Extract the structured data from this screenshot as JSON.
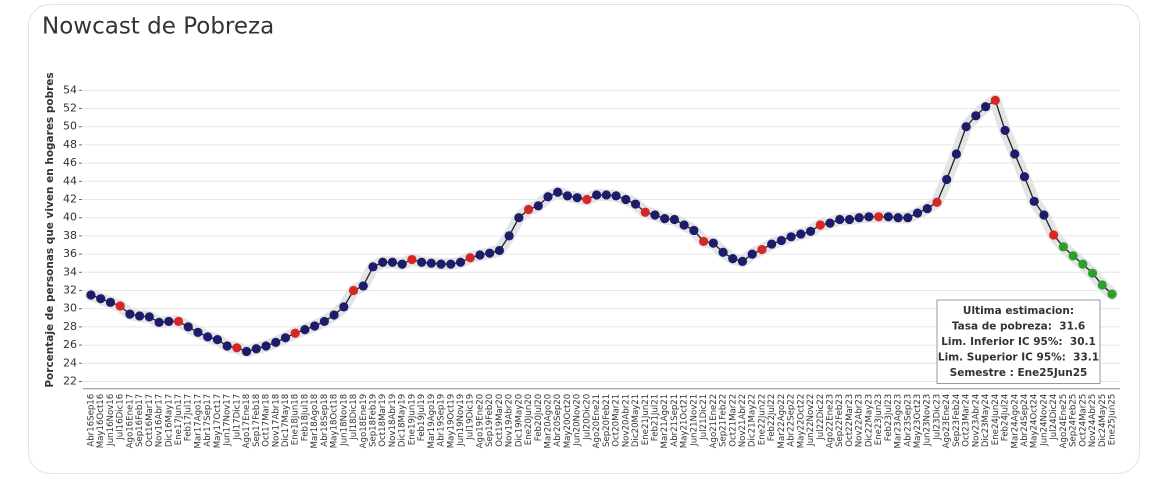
{
  "chart_data": {
    "type": "line",
    "title": "Nowcast de Pobreza",
    "y_label": "Porcentaje de personas que viven en hogares pobres",
    "categories": [
      "Abr16Sep16",
      "May16Oct16",
      "Jun16Nov16",
      "Jul16Dic16",
      "Ago16Ene17",
      "Sep16Feb17",
      "Oct16Mar17",
      "Nov16Abr17",
      "Dic16May17",
      "Ene17Jun17",
      "Feb17Jul17",
      "Mar17Ago17",
      "Abr17Sep17",
      "May17Oct17",
      "Jun17Nov17",
      "Jul17Dic17",
      "Ago17Ene18",
      "Sep17Feb18",
      "Oct17Mar18",
      "Nov17Abr18",
      "Dic17May18",
      "Ene18Jun18",
      "Feb18Jul18",
      "Mar18Ago18",
      "Abr18Sep18",
      "May18Oct18",
      "Jun18Nov18",
      "Jul18Dic18",
      "Ago18Ene19",
      "Sep18Feb19",
      "Oct18Mar19",
      "Nov18Abr19",
      "Dic18May19",
      "Ene19Jun19",
      "Feb19Jul19",
      "Mar19Ago19",
      "Abr19Sep19",
      "May19Oct19",
      "Jun19Nov19",
      "Jul19Dic19",
      "Ago19Ene20",
      "Sep19Feb20",
      "Oct19Mar20",
      "Nov19Abr20",
      "Dic19May20",
      "Ene20Jun20",
      "Feb20Jul20",
      "Mar20Ago20",
      "Abr20Sep20",
      "May20Oct20",
      "Jun20Nov20",
      "Jul20Dic20",
      "Ago20Ene21",
      "Sep20Feb21",
      "Oct20Mar21",
      "Nov20Abr21",
      "Dic20May21",
      "Ene21Jun21",
      "Feb21Jul21",
      "Mar21Ago21",
      "Abr21Sep21",
      "May21Oct21",
      "Jun21Nov21",
      "Jul21Dic21",
      "Ago21Ene22",
      "Sep21Feb22",
      "Oct21Mar22",
      "Nov21Abr22",
      "Dic21May22",
      "Ene22Jun22",
      "Feb22Jul22",
      "Mar22Ago22",
      "Abr22Sep22",
      "May22Oct22",
      "Jun22Nov22",
      "Jul22Dic22",
      "Ago22Ene23",
      "Sep22Feb23",
      "Oct22Mar23",
      "Nov22Abr23",
      "Dic22May23",
      "Ene23Jun23",
      "Feb23Jul23",
      "Mar23Ago23",
      "Abr23Sep23",
      "May23Oct23",
      "Jun23Nov23",
      "Jul23Dic23",
      "Ago23Ene24",
      "Sep23Feb24",
      "Oct23Mar24",
      "Nov23Abr24",
      "Dic23May24",
      "Ene24Jun24",
      "Feb24Jul24",
      "Mar24Ago24",
      "Abr24Sep24",
      "May24Oct24",
      "Jun24Nov24",
      "Jul24Dic24",
      "Ago24Ene25",
      "Sep24Feb25",
      "Oct24Mar25",
      "Nov24Abr25",
      "Dic24May25",
      "Ene25Jun25"
    ],
    "values": [
      31.5,
      31.1,
      30.7,
      30.3,
      29.4,
      29.2,
      29.1,
      28.5,
      28.6,
      28.6,
      28.0,
      27.4,
      26.9,
      26.6,
      25.9,
      25.7,
      25.3,
      25.6,
      25.9,
      26.3,
      26.8,
      27.3,
      27.7,
      28.1,
      28.6,
      29.3,
      30.2,
      32.0,
      32.5,
      34.6,
      35.1,
      35.1,
      34.9,
      35.4,
      35.1,
      35.0,
      34.9,
      34.9,
      35.1,
      35.6,
      35.9,
      36.1,
      36.4,
      38.0,
      40.0,
      40.9,
      41.3,
      42.3,
      42.8,
      42.4,
      42.2,
      42.0,
      42.5,
      42.5,
      42.4,
      42.0,
      41.5,
      40.6,
      40.3,
      39.9,
      39.8,
      39.2,
      38.6,
      37.4,
      37.2,
      36.2,
      35.5,
      35.2,
      36.0,
      36.5,
      37.1,
      37.5,
      37.9,
      38.2,
      38.5,
      39.2,
      39.4,
      39.8,
      39.8,
      40.0,
      40.1,
      40.1,
      40.1,
      40.0,
      40.0,
      40.5,
      41.0,
      41.7,
      44.2,
      47.0,
      50.0,
      51.2,
      52.2,
      52.9,
      49.6,
      47.0,
      44.5,
      41.8,
      40.3,
      38.1,
      36.8,
      35.8,
      34.9,
      33.9,
      32.6,
      31.6
    ],
    "line_color": "#222222",
    "point_colors": [
      "#1c1c6b",
      "#1c1c6b",
      "#1c1c6b",
      "#d62728",
      "#1c1c6b",
      "#1c1c6b",
      "#1c1c6b",
      "#1c1c6b",
      "#1c1c6b",
      "#d62728",
      "#1c1c6b",
      "#1c1c6b",
      "#1c1c6b",
      "#1c1c6b",
      "#1c1c6b",
      "#d62728",
      "#1c1c6b",
      "#1c1c6b",
      "#1c1c6b",
      "#1c1c6b",
      "#1c1c6b",
      "#d62728",
      "#1c1c6b",
      "#1c1c6b",
      "#1c1c6b",
      "#1c1c6b",
      "#1c1c6b",
      "#d62728",
      "#1c1c6b",
      "#1c1c6b",
      "#1c1c6b",
      "#1c1c6b",
      "#1c1c6b",
      "#d62728",
      "#1c1c6b",
      "#1c1c6b",
      "#1c1c6b",
      "#1c1c6b",
      "#1c1c6b",
      "#d62728",
      "#1c1c6b",
      "#1c1c6b",
      "#1c1c6b",
      "#1c1c6b",
      "#1c1c6b",
      "#d62728",
      "#1c1c6b",
      "#1c1c6b",
      "#1c1c6b",
      "#1c1c6b",
      "#1c1c6b",
      "#d62728",
      "#1c1c6b",
      "#1c1c6b",
      "#1c1c6b",
      "#1c1c6b",
      "#1c1c6b",
      "#d62728",
      "#1c1c6b",
      "#1c1c6b",
      "#1c1c6b",
      "#1c1c6b",
      "#1c1c6b",
      "#d62728",
      "#1c1c6b",
      "#1c1c6b",
      "#1c1c6b",
      "#1c1c6b",
      "#1c1c6b",
      "#d62728",
      "#1c1c6b",
      "#1c1c6b",
      "#1c1c6b",
      "#1c1c6b",
      "#1c1c6b",
      "#d62728",
      "#1c1c6b",
      "#1c1c6b",
      "#1c1c6b",
      "#1c1c6b",
      "#1c1c6b",
      "#d62728",
      "#1c1c6b",
      "#1c1c6b",
      "#1c1c6b",
      "#1c1c6b",
      "#1c1c6b",
      "#d62728",
      "#1c1c6b",
      "#1c1c6b",
      "#1c1c6b",
      "#1c1c6b",
      "#1c1c6b",
      "#d62728",
      "#1c1c6b",
      "#1c1c6b",
      "#1c1c6b",
      "#1c1c6b",
      "#1c1c6b",
      "#d62728",
      "#2ca02c",
      "#2ca02c",
      "#2ca02c",
      "#2ca02c",
      "#2ca02c",
      "#2ca02c"
    ],
    "ylim": [
      21.2,
      55.2
    ],
    "yticks": [
      22,
      24,
      26,
      28,
      30,
      32,
      34,
      36,
      38,
      40,
      42,
      44,
      46,
      48,
      50,
      52,
      54
    ],
    "grid": true,
    "tooltip": [
      "Ultima estimacion:",
      "Tasa de pobreza:  31.6",
      "Lim. Inferior IC 95%:  30.1",
      "Lim. Superior IC 95%:  33.1",
      "Semestre : Ene25Jun25"
    ]
  }
}
